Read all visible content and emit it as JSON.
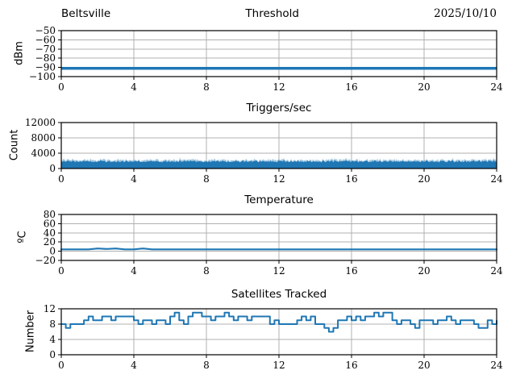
{
  "figure": {
    "background": "#ffffff",
    "line_color": "#1f77b4",
    "grid_color": "#b0b0b0",
    "spine_color": "#000000",
    "text_color": "#000000"
  },
  "chart_data": [
    {
      "type": "line",
      "title": "Threshold",
      "title_left": "Beltsville",
      "title_right": "2025/10/10",
      "ylabel": "dBm",
      "xlabel": "",
      "ylim": [
        -100,
        -50
      ],
      "yticks": [
        -100,
        -90,
        -80,
        -70,
        -60,
        -50
      ],
      "xlim": [
        0,
        24
      ],
      "xticks": [
        0,
        4,
        8,
        12,
        16,
        20,
        24
      ],
      "grid": true,
      "series": [
        {
          "name": "threshold-dbm",
          "style": "constant",
          "value": -91,
          "linewidth": 3.5,
          "color": "#1f77b4"
        }
      ]
    },
    {
      "type": "area",
      "title": "Triggers/sec",
      "ylabel": "Count",
      "xlabel": "",
      "ylim": [
        0,
        12000
      ],
      "yticks": [
        0,
        4000,
        8000,
        12000
      ],
      "xlim": [
        0,
        24
      ],
      "xticks": [
        0,
        4,
        8,
        12,
        16,
        20,
        24
      ],
      "grid": true,
      "series": [
        {
          "name": "trigger-count",
          "style": "noise-band",
          "base": 0,
          "top_mean": 1850,
          "top_jitter": 250,
          "fuzz_extra": 500,
          "value_range": [
            0,
            2600
          ],
          "seed": 7,
          "color": "#1f77b4"
        }
      ]
    },
    {
      "type": "line",
      "title": "Temperature",
      "ylabel": "ºC",
      "xlabel": "",
      "ylim": [
        -20,
        80
      ],
      "yticks": [
        -20,
        0,
        20,
        40,
        60,
        80
      ],
      "xlim": [
        0,
        24
      ],
      "xticks": [
        0,
        4,
        8,
        12,
        16,
        20,
        24
      ],
      "grid": true,
      "series": [
        {
          "name": "temperature-c",
          "style": "line",
          "linewidth": 2.2,
          "color": "#1f77b4",
          "x_start": 0,
          "x_step": 0.5,
          "y": [
            4,
            4,
            4,
            4,
            6,
            5,
            6,
            4,
            4,
            6,
            4,
            4,
            4,
            4,
            4,
            4,
            4,
            4,
            4,
            4,
            4,
            4,
            4,
            4,
            4,
            4,
            4,
            4,
            4,
            4,
            4,
            4,
            4,
            4,
            4,
            4,
            4,
            4,
            4,
            4,
            4,
            4,
            4,
            4,
            4,
            4,
            4,
            4,
            4
          ]
        }
      ]
    },
    {
      "type": "line",
      "title": "Satellites Tracked",
      "ylabel": "Number",
      "xlabel": "",
      "ylim": [
        0,
        12
      ],
      "yticks": [
        0,
        4,
        8,
        12
      ],
      "xlim": [
        0,
        24
      ],
      "xticks": [
        0,
        4,
        8,
        12,
        16,
        20,
        24
      ],
      "grid": true,
      "series": [
        {
          "name": "satellites-tracked",
          "style": "step",
          "linewidth": 2,
          "color": "#1f77b4",
          "x_start": 0,
          "x_step": 0.25,
          "y": [
            8,
            7,
            8,
            8,
            8,
            9,
            10,
            9,
            9,
            10,
            10,
            9,
            10,
            10,
            10,
            10,
            9,
            8,
            9,
            9,
            8,
            9,
            9,
            8,
            10,
            11,
            9,
            8,
            10,
            11,
            11,
            10,
            10,
            9,
            10,
            10,
            11,
            10,
            9,
            10,
            10,
            9,
            10,
            10,
            10,
            10,
            8,
            9,
            8,
            8,
            8,
            8,
            9,
            10,
            9,
            10,
            8,
            8,
            7,
            6,
            7,
            9,
            9,
            10,
            9,
            10,
            9,
            10,
            10,
            11,
            10,
            11,
            11,
            9,
            8,
            9,
            9,
            8,
            7,
            9,
            9,
            9,
            8,
            9,
            9,
            10,
            9,
            8,
            9,
            9,
            9,
            8,
            7,
            7,
            9,
            8,
            9
          ]
        }
      ]
    }
  ]
}
